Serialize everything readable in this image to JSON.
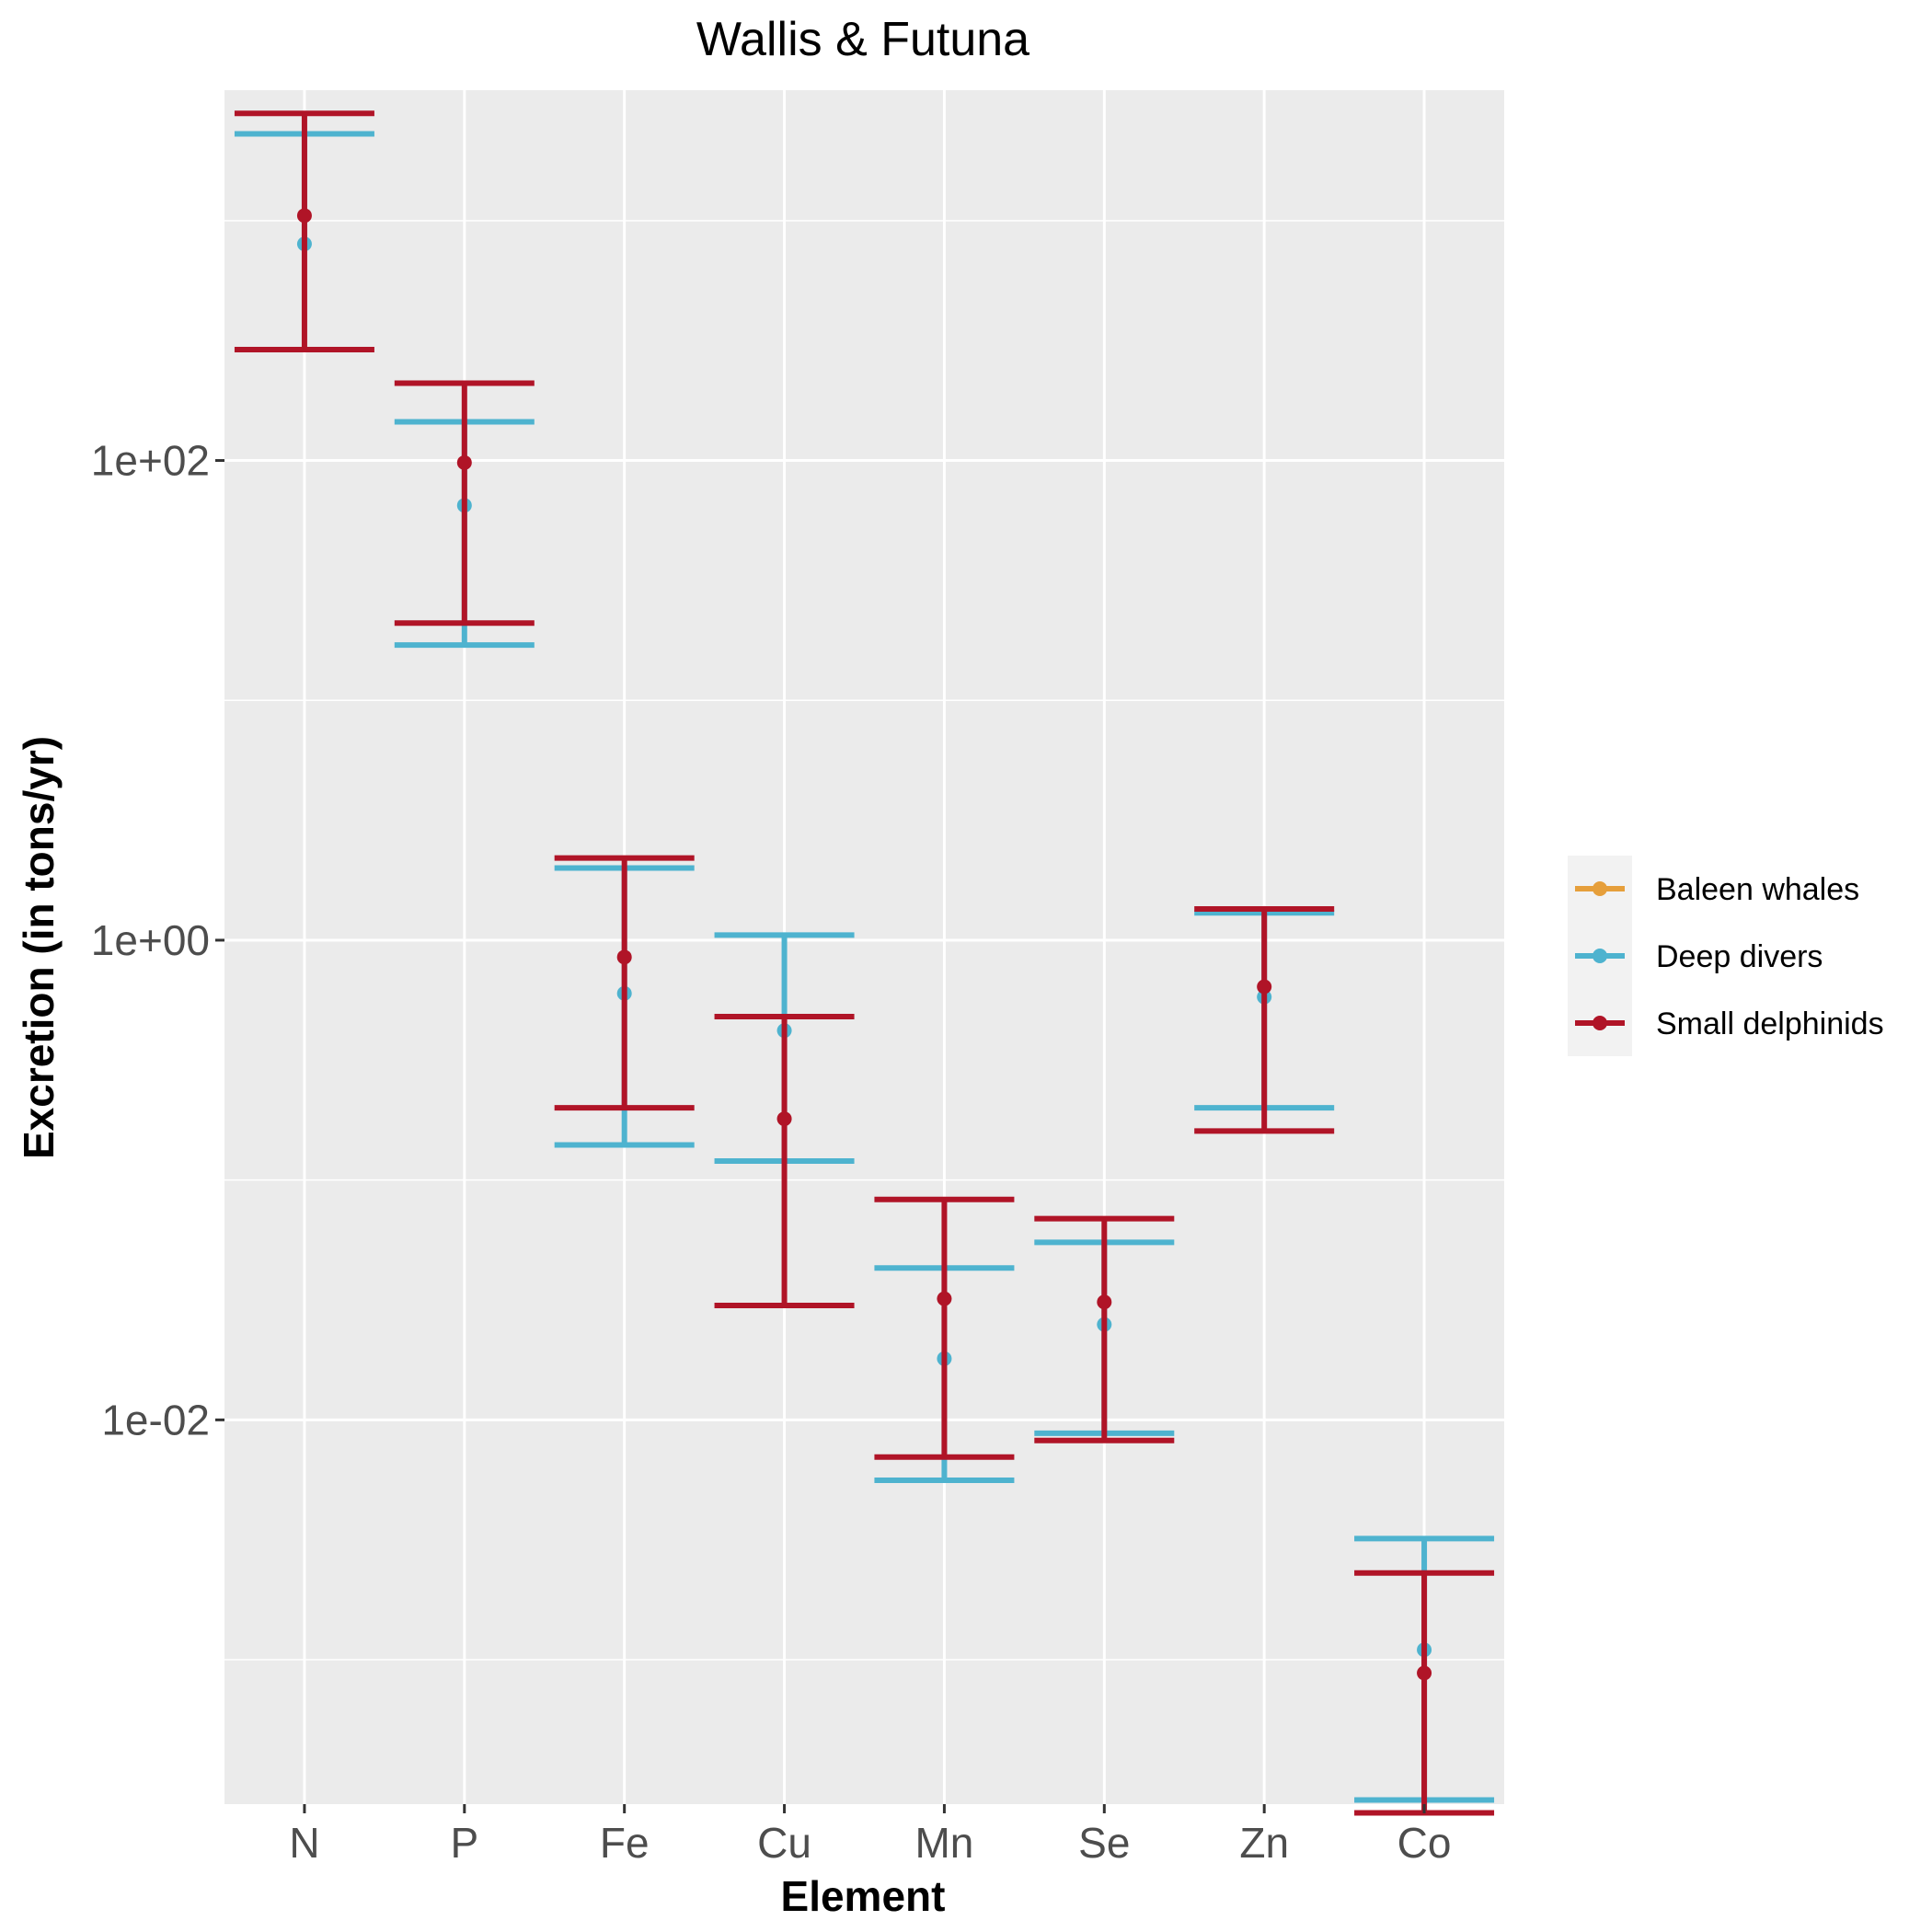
{
  "chart_data": {
    "type": "errorbar",
    "title": "Wallis & Futuna",
    "xlabel": "Element",
    "ylabel": "Excretion (in tons/yr)",
    "y_scale": "log10",
    "ylim": [
      0.00025,
      3500
    ],
    "y_ticks": [
      {
        "value": 100,
        "label": "1e+02"
      },
      {
        "value": 1,
        "label": "1e+00"
      },
      {
        "value": 0.01,
        "label": "1e-02"
      }
    ],
    "y_minor_grid": [
      1000,
      10,
      0.1,
      0.001
    ],
    "categories": [
      "N",
      "P",
      "Fe",
      "Cu",
      "Mn",
      "Se",
      "Zn",
      "Co"
    ],
    "grid": true,
    "legend_position": "right",
    "series": [
      {
        "name": "Baleen whales",
        "color": "#E69F3B",
        "points": []
      },
      {
        "name": "Deep divers",
        "color": "#4EB3CF",
        "points": [
          {
            "x": "N",
            "y": 800,
            "ymin": null,
            "ymax": 2300
          },
          {
            "x": "P",
            "y": 65,
            "ymin": 17,
            "ymax": 145
          },
          {
            "x": "Fe",
            "y": 0.6,
            "ymin": 0.14,
            "ymax": 2.0
          },
          {
            "x": "Cu",
            "y": 0.42,
            "ymin": 0.12,
            "ymax": 1.05
          },
          {
            "x": "Mn",
            "y": 0.018,
            "ymin": 0.0056,
            "ymax": 0.043
          },
          {
            "x": "Se",
            "y": 0.025,
            "ymin": 0.0088,
            "ymax": 0.055
          },
          {
            "x": "Zn",
            "y": 0.58,
            "ymin": 0.2,
            "ymax": 1.3
          },
          {
            "x": "Co",
            "y": 0.0011,
            "ymin": 0.00026,
            "ymax": 0.0032
          }
        ]
      },
      {
        "name": "Small delphinids",
        "color": "#B01427",
        "points": [
          {
            "x": "N",
            "y": 1050,
            "ymin": 290,
            "ymax": 2800
          },
          {
            "x": "P",
            "y": 98,
            "ymin": 21,
            "ymax": 210
          },
          {
            "x": "Fe",
            "y": 0.85,
            "ymin": 0.2,
            "ymax": 2.2
          },
          {
            "x": "Cu",
            "y": 0.18,
            "ymin": 0.03,
            "ymax": 0.48
          },
          {
            "x": "Mn",
            "y": 0.032,
            "ymin": 0.007,
            "ymax": 0.083
          },
          {
            "x": "Se",
            "y": 0.031,
            "ymin": 0.0082,
            "ymax": 0.069
          },
          {
            "x": "Zn",
            "y": 0.64,
            "ymin": 0.16,
            "ymax": 1.35
          },
          {
            "x": "Co",
            "y": 0.00088,
            "ymin": 0.00023,
            "ymax": 0.0023
          }
        ]
      }
    ]
  }
}
